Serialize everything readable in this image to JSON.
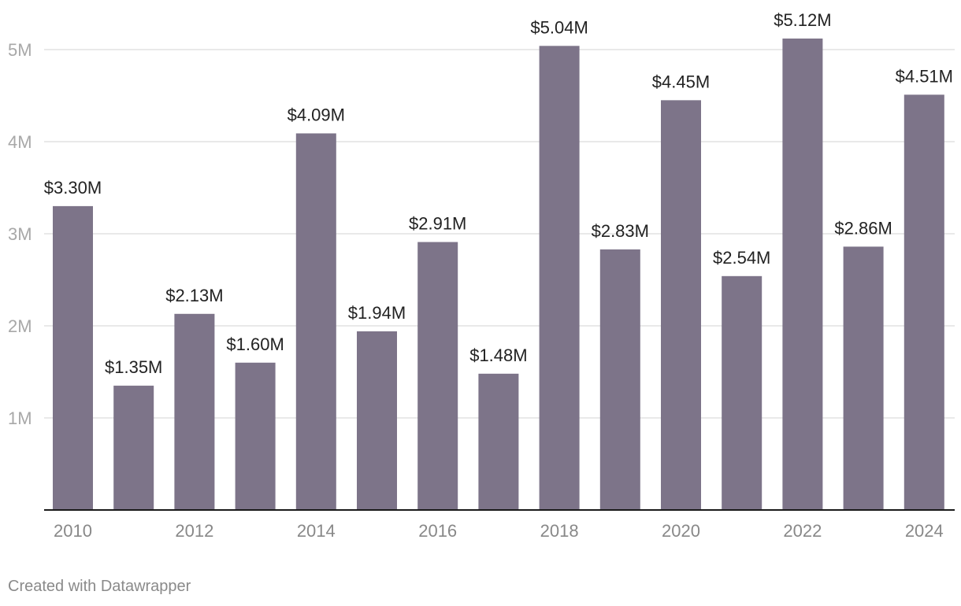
{
  "chart_data": {
    "type": "bar",
    "categories": [
      "2010",
      "2011",
      "2012",
      "2013",
      "2014",
      "2015",
      "2016",
      "2017",
      "2018",
      "2019",
      "2020",
      "2021",
      "2022",
      "2023",
      "2024"
    ],
    "values": [
      3.3,
      1.35,
      2.13,
      1.6,
      4.09,
      1.94,
      2.91,
      1.48,
      5.04,
      2.83,
      4.45,
      2.54,
      5.12,
      2.86,
      4.51
    ],
    "data_labels": [
      "$3.30M",
      "$1.35M",
      "$2.13M",
      "$1.60M",
      "$4.09M",
      "$1.94M",
      "$2.91M",
      "$1.48M",
      "$5.04M",
      "$2.83M",
      "$4.45M",
      "$2.54M",
      "$5.12M",
      "$2.86M",
      "$4.51M"
    ],
    "x_tick_labels": [
      "2010",
      "2012",
      "2014",
      "2016",
      "2018",
      "2020",
      "2022",
      "2024"
    ],
    "y_ticks": [
      1,
      2,
      3,
      4,
      5
    ],
    "y_tick_labels": [
      "1M",
      "2M",
      "3M",
      "4M",
      "5M"
    ],
    "ylim": [
      0,
      5.5
    ],
    "bar_color": "#7d7489",
    "title": "",
    "xlabel": "",
    "ylabel": "",
    "grid": true
  },
  "footer": {
    "credit": "Created with Datawrapper"
  }
}
